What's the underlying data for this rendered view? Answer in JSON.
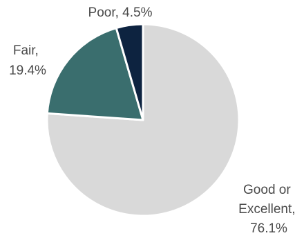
{
  "chart_data": {
    "type": "pie",
    "title": "",
    "categories": [
      "Good or Excellent",
      "Fair",
      "Poor"
    ],
    "values": [
      76.1,
      19.4,
      4.5
    ],
    "unit": "%",
    "start_angle_deg": 0,
    "direction": "clockwise",
    "colors": [
      "#d9d9d9",
      "#3a6e6e",
      "#0d2340"
    ],
    "legend": "none",
    "labels": [
      {
        "lines": [
          "Good or",
          "Excellent,",
          "76.1%"
        ]
      },
      {
        "lines": [
          "Fair,",
          "19.4%"
        ]
      },
      {
        "lines": [
          "Poor, 4.5%"
        ]
      }
    ]
  }
}
